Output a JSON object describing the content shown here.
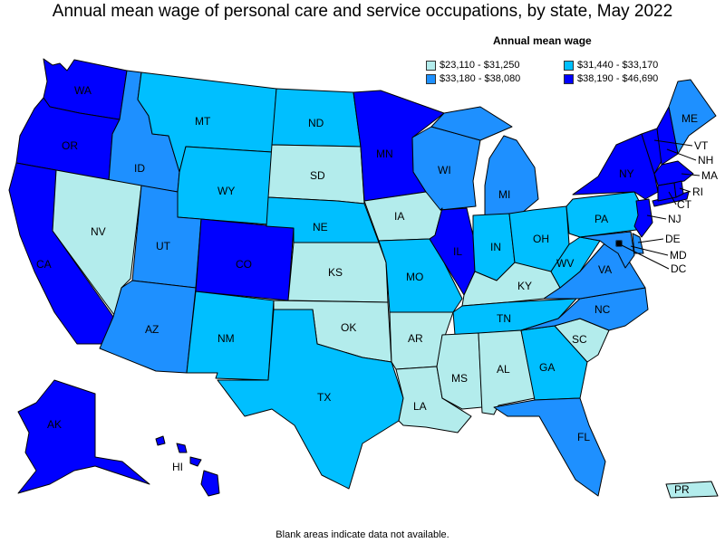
{
  "title": "Annual mean wage of personal care and service occupations, by state, May 2022",
  "legend": {
    "title": "Annual mean wage",
    "items": [
      {
        "label": "$23,110 - $31,250",
        "color": "#b3ecec"
      },
      {
        "label": "$31,440 - $33,170",
        "color": "#00bfff"
      },
      {
        "label": "$33,180 - $38,080",
        "color": "#1e90ff"
      },
      {
        "label": "$38,190 - $46,690",
        "color": "#0000ff"
      }
    ]
  },
  "footnote": "Blank areas indicate data not available.",
  "states": {
    "WA": 4,
    "OR": 4,
    "CA": 4,
    "AK": 4,
    "HI": 4,
    "CO": 4,
    "MN": 4,
    "IL": 4,
    "NY": 4,
    "NJ": 4,
    "MA": 4,
    "CT": 4,
    "VT": 4,
    "NH": 4,
    "RI": 4,
    "ID": 3,
    "UT": 3,
    "AZ": 3,
    "WI": 3,
    "MI": 3,
    "VA": 3,
    "NC": 3,
    "FL": 3,
    "ME": 3,
    "MD": 3,
    "DE": 3,
    "DC": 3,
    "MT": 2,
    "ND": 2,
    "WY": 2,
    "NE": 2,
    "NM": 2,
    "TX": 2,
    "MO": 2,
    "IN": 2,
    "OH": 2,
    "PA": 2,
    "WV": 2,
    "TN": 2,
    "GA": 2,
    "NV": 1,
    "SD": 1,
    "IA": 1,
    "KS": 1,
    "OK": 1,
    "AR": 1,
    "LA": 1,
    "MS": 1,
    "AL": 1,
    "KY": 1,
    "SC": 1,
    "PR": 1
  }
}
